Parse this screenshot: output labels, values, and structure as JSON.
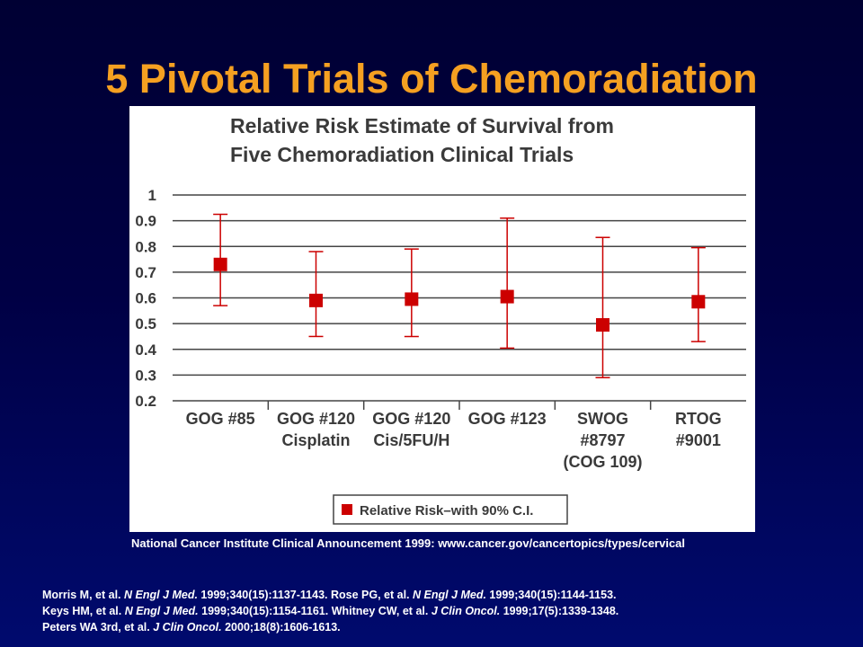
{
  "slide": {
    "title": "5 Pivotal Trials of Chemoradiation",
    "source_note": "National Cancer Institute Clinical Announcement 1999: www.cancer.gov/cancertopics/types/cervical",
    "references": [
      [
        {
          "text": "Morris M, et al. "
        },
        {
          "text": "N Engl J Med.",
          "italic": true
        },
        {
          "text": " 1999;340(15):1137-1143. Rose PG, et al. "
        },
        {
          "text": "N Engl J Med.",
          "italic": true
        },
        {
          "text": " 1999;340(15):1144-1153."
        }
      ],
      [
        {
          "text": "Keys HM, et al. "
        },
        {
          "text": "N Engl J Med.",
          "italic": true
        },
        {
          "text": " 1999;340(15):1154-1161. Whitney CW, et al. "
        },
        {
          "text": "J Clin Oncol.",
          "italic": true
        },
        {
          "text": " 1999;17(5):1339-1348."
        }
      ],
      [
        {
          "text": "Peters WA 3rd, et al. "
        },
        {
          "text": "J Clin Oncol.",
          "italic": true
        },
        {
          "text": " 2000;18(8):1606-1613."
        }
      ]
    ]
  },
  "colors": {
    "title": "#f5a021",
    "marker": "#cc0000",
    "gridline": "#444444",
    "chart_text": "#3a3a3a"
  },
  "chart_data": {
    "type": "scatter",
    "title_lines": [
      "Relative Risk Estimate of Survival from",
      "Five Chemoradiation Clinical Trials"
    ],
    "categories": [
      [
        "GOG #85"
      ],
      [
        "GOG #120",
        "Cisplatin"
      ],
      [
        "GOG #120",
        "Cis/5FU/H"
      ],
      [
        "GOG #123"
      ],
      [
        "SWOG",
        "#8797",
        "(COG 109)"
      ],
      [
        "RTOG",
        "#9001"
      ]
    ],
    "series": [
      {
        "name": "Relative Risk–with 90% C.I.",
        "values": [
          0.73,
          0.59,
          0.595,
          0.605,
          0.495,
          0.585
        ],
        "ci_low": [
          0.57,
          0.45,
          0.45,
          0.405,
          0.29,
          0.43
        ],
        "ci_high": [
          0.925,
          0.78,
          0.79,
          0.91,
          0.835,
          0.795
        ]
      }
    ],
    "ylim": [
      0.2,
      1
    ],
    "yticks": [
      "1",
      "0.9",
      "0.8",
      "0.7",
      "0.6",
      "0.5",
      "0.4",
      "0.3",
      "0.2"
    ],
    "grid": true,
    "legend": "bottom-center"
  }
}
